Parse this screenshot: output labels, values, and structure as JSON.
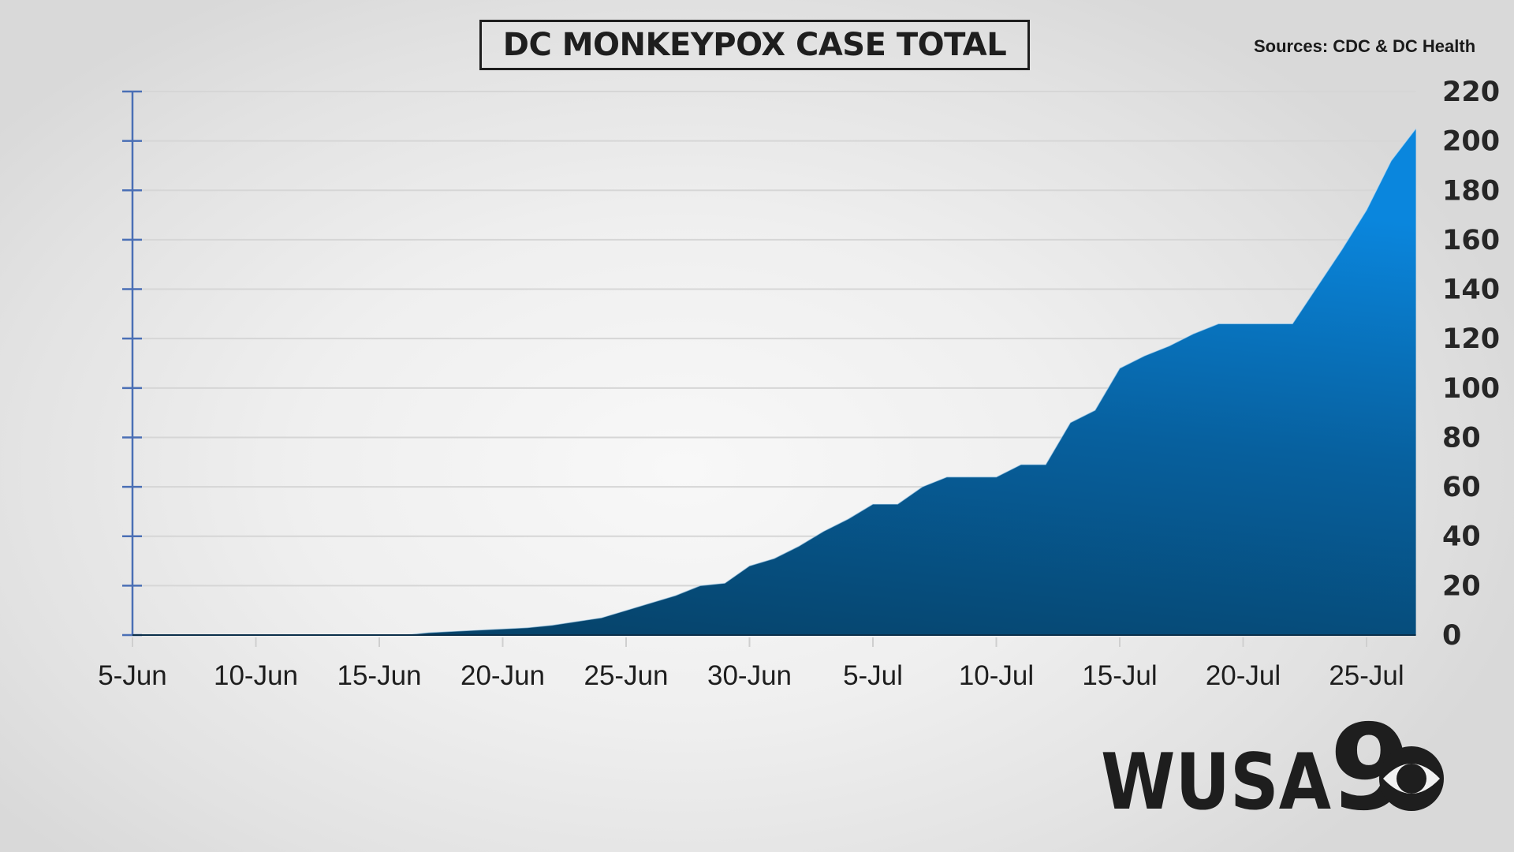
{
  "header": {
    "title": "DC MONKEYPOX CASE TOTAL",
    "sources": "Sources: CDC & DC Health"
  },
  "logo": {
    "text": "WUSA",
    "numeral": "9",
    "network_icon": "cbs-eye-icon"
  },
  "colors": {
    "area_top": "#0a86dd",
    "area_bottom": "#063f63",
    "axis_line": "#4a6fb5",
    "gridline": "#d6d6d6",
    "text": "#1e1e1e"
  },
  "chart_data": {
    "type": "area",
    "title": "DC MONKEYPOX CASE TOTAL",
    "subtitle": "Sources: CDC & DC Health",
    "xlabel": "",
    "ylabel": "",
    "ylim": [
      0,
      220
    ],
    "yticks": [
      0,
      20,
      40,
      60,
      80,
      100,
      120,
      140,
      160,
      180,
      200,
      220
    ],
    "ytick_labels": [
      "0",
      "20",
      "40",
      "60",
      "80",
      "100",
      "120",
      "140",
      "160",
      "180",
      "200",
      "220"
    ],
    "xtick_labels": [
      "5-Jun",
      "10-Jun",
      "15-Jun",
      "20-Jun",
      "25-Jun",
      "30-Jun",
      "5-Jul",
      "10-Jul",
      "15-Jul",
      "20-Jul",
      "25-Jul"
    ],
    "grid": true,
    "legend": "none",
    "y_axis_labels_position": "right",
    "x": [
      "5-Jun",
      "6-Jun",
      "7-Jun",
      "8-Jun",
      "9-Jun",
      "10-Jun",
      "11-Jun",
      "12-Jun",
      "13-Jun",
      "14-Jun",
      "15-Jun",
      "16-Jun",
      "17-Jun",
      "18-Jun",
      "19-Jun",
      "20-Jun",
      "21-Jun",
      "22-Jun",
      "23-Jun",
      "24-Jun",
      "25-Jun",
      "26-Jun",
      "27-Jun",
      "28-Jun",
      "29-Jun",
      "30-Jun",
      "1-Jul",
      "2-Jul",
      "3-Jul",
      "4-Jul",
      "5-Jul",
      "6-Jul",
      "7-Jul",
      "8-Jul",
      "9-Jul",
      "10-Jul",
      "11-Jul",
      "12-Jul",
      "13-Jul",
      "14-Jul",
      "15-Jul",
      "16-Jul",
      "17-Jul",
      "18-Jul",
      "19-Jul",
      "20-Jul",
      "21-Jul",
      "22-Jul",
      "23-Jul",
      "24-Jul",
      "25-Jul",
      "26-Jul",
      "27-Jul"
    ],
    "series": [
      {
        "name": "DC monkeypox case total",
        "values": [
          0,
          0,
          0,
          0,
          0,
          0,
          0,
          0,
          0,
          0,
          0,
          0,
          1,
          1.5,
          2,
          2.5,
          3,
          4,
          5.5,
          7,
          10,
          13,
          16,
          20,
          21,
          28,
          31,
          36,
          42,
          47,
          53,
          53,
          60,
          64,
          64,
          64,
          69,
          69,
          86,
          91,
          108,
          113,
          117,
          122,
          126,
          126,
          126,
          126,
          141,
          156,
          172,
          192,
          205
        ]
      }
    ]
  }
}
